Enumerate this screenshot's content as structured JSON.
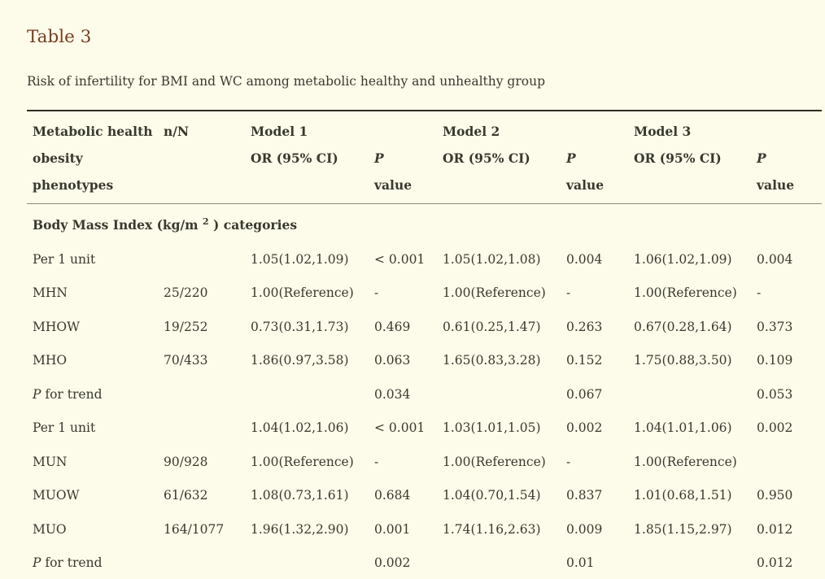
{
  "page": {
    "title": "Table 3",
    "subtitle": "Risk of infertility for BMI and WC among metabolic healthy and unhealthy group"
  },
  "colors": {
    "background": "#fdfcea",
    "title_text": "#7d3c21",
    "body_text": "#3a392f",
    "rule_dark": "#2d2c22",
    "rule_light": "#8b8a80"
  },
  "table": {
    "header": {
      "phenotypes_lines": [
        "Metabolic health",
        "obesity",
        "phenotypes"
      ],
      "n_label": "n/N",
      "models": [
        "Model 1",
        "Model 2",
        "Model 3"
      ],
      "or_label": "OR (95% CI)",
      "p_italic": "P",
      "p_value_word": "value"
    },
    "section": {
      "pre": "Body Mass Index (kg/m ",
      "sup": "2",
      "post": " ) categories"
    },
    "rows": [
      {
        "label_italic": "",
        "cells": [
          "Per 1 unit",
          "",
          "1.05(1.02,1.09)",
          "< 0.001",
          "1.05(1.02,1.08)",
          "0.004",
          "1.06(1.02,1.09)",
          "0.004"
        ]
      },
      {
        "label_italic": "",
        "cells": [
          "MHN",
          "25/220",
          "1.00(Reference)",
          "-",
          "1.00(Reference)",
          "-",
          "1.00(Reference)",
          "-"
        ]
      },
      {
        "label_italic": "",
        "cells": [
          "MHOW",
          "19/252",
          "0.73(0.31,1.73)",
          "0.469",
          "0.61(0.25,1.47)",
          "0.263",
          "0.67(0.28,1.64)",
          "0.373"
        ]
      },
      {
        "label_italic": "",
        "cells": [
          "MHO",
          "70/433",
          "1.86(0.97,3.58)",
          "0.063",
          "1.65(0.83,3.28)",
          "0.152",
          "1.75(0.88,3.50)",
          "0.109"
        ]
      },
      {
        "label_italic": "P",
        "cells": [
          " for trend",
          "",
          "",
          "0.034",
          "",
          "0.067",
          "",
          "0.053"
        ]
      },
      {
        "label_italic": "",
        "cells": [
          "Per 1 unit",
          "",
          "1.04(1.02,1.06)",
          "< 0.001",
          "1.03(1.01,1.05)",
          "0.002",
          "1.04(1.01,1.06)",
          "0.002"
        ]
      },
      {
        "label_italic": "",
        "cells": [
          "MUN",
          "90/928",
          "1.00(Reference)",
          "-",
          "1.00(Reference)",
          "-",
          "1.00(Reference)",
          ""
        ]
      },
      {
        "label_italic": "",
        "cells": [
          "MUOW",
          "61/632",
          "1.08(0.73,1.61)",
          "0.684",
          "1.04(0.70,1.54)",
          "0.837",
          "1.01(0.68,1.51)",
          "0.950"
        ]
      },
      {
        "label_italic": "",
        "cells": [
          "MUO",
          "164/1077",
          "1.96(1.32,2.90)",
          "0.001",
          "1.74(1.16,2.63)",
          "0.009",
          "1.85(1.15,2.97)",
          "0.012"
        ]
      },
      {
        "label_italic": "P",
        "cells": [
          " for trend",
          "",
          "",
          "0.002",
          "",
          "0.01",
          "",
          "0.012"
        ]
      }
    ]
  }
}
